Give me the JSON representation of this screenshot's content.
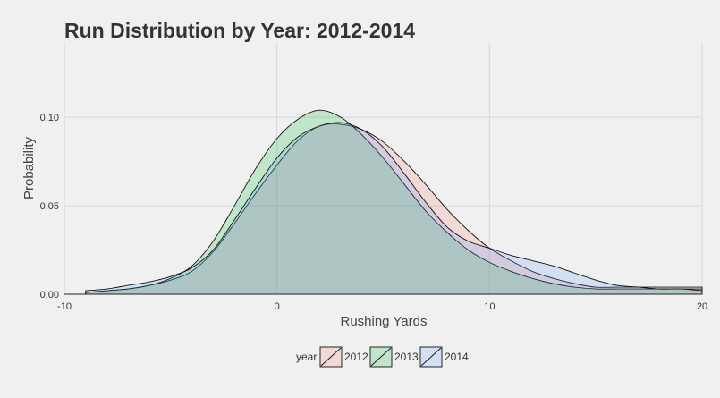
{
  "chart_data": {
    "type": "area",
    "title": "Run Distribution by Year: 2012-2014",
    "xlabel": "Rushing Yards",
    "ylabel": "Probability",
    "xlim": [
      -10,
      20
    ],
    "ylim": [
      0,
      0.142
    ],
    "x_ticks": [
      -10,
      0,
      10,
      20
    ],
    "x_tick_labels": [
      "-10",
      "0",
      "10",
      "20"
    ],
    "y_ticks": [
      0,
      0.05,
      0.1
    ],
    "y_tick_labels": [
      "0.00",
      "0.05",
      "0.10"
    ],
    "grid": true,
    "legend": {
      "title": "year",
      "position": "bottom"
    },
    "x": [
      -9,
      -8,
      -7,
      -6,
      -5,
      -4,
      -3,
      -2,
      -1,
      0,
      1,
      2,
      3,
      4,
      5,
      6,
      7,
      8,
      9,
      10,
      11,
      12,
      13,
      14,
      15,
      16,
      17,
      18,
      19,
      20
    ],
    "series": [
      {
        "name": "2012",
        "color": "#f8766d",
        "values": [
          0.001,
          0.002,
          0.003,
          0.005,
          0.008,
          0.013,
          0.024,
          0.04,
          0.057,
          0.073,
          0.087,
          0.095,
          0.096,
          0.093,
          0.086,
          0.075,
          0.062,
          0.048,
          0.036,
          0.026,
          0.019,
          0.013,
          0.009,
          0.006,
          0.004,
          0.004,
          0.004,
          0.004,
          0.004,
          0.004
        ]
      },
      {
        "name": "2013",
        "color": "#00ba38",
        "values": [
          0.001,
          0.002,
          0.003,
          0.005,
          0.009,
          0.016,
          0.03,
          0.05,
          0.071,
          0.088,
          0.099,
          0.104,
          0.1,
          0.09,
          0.077,
          0.062,
          0.047,
          0.035,
          0.025,
          0.018,
          0.013,
          0.009,
          0.006,
          0.004,
          0.003,
          0.003,
          0.003,
          0.003,
          0.003,
          0.003
        ]
      },
      {
        "name": "2014",
        "color": "#619cff",
        "values": [
          0.002,
          0.003,
          0.005,
          0.007,
          0.01,
          0.015,
          0.025,
          0.042,
          0.06,
          0.077,
          0.089,
          0.095,
          0.097,
          0.093,
          0.083,
          0.068,
          0.052,
          0.038,
          0.03,
          0.026,
          0.022,
          0.019,
          0.016,
          0.012,
          0.008,
          0.005,
          0.004,
          0.003,
          0.003,
          0.002
        ]
      }
    ]
  }
}
